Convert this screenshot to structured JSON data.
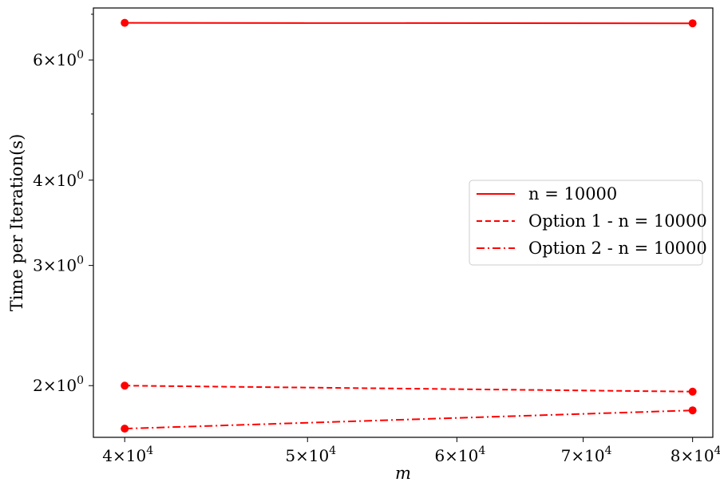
{
  "chart_data": {
    "type": "line",
    "title": "",
    "xlabel": "m",
    "ylabel": "Time per Iteration(s)",
    "x_scale": "log",
    "y_scale": "log",
    "xlim": [
      38500,
      82000
    ],
    "ylim": [
      1.68,
      7.15
    ],
    "x_ticks": [
      {
        "value": 40000,
        "mant": "4",
        "exp": "4"
      },
      {
        "value": 50000,
        "mant": "5",
        "exp": "4"
      },
      {
        "value": 60000,
        "mant": "6",
        "exp": "4"
      },
      {
        "value": 70000,
        "mant": "7",
        "exp": "4"
      },
      {
        "value": 80000,
        "mant": "8",
        "exp": "4"
      }
    ],
    "y_ticks": [
      {
        "value": 2,
        "mant": "2",
        "exp": "0"
      },
      {
        "value": 3,
        "mant": "3",
        "exp": "0"
      },
      {
        "value": 4,
        "mant": "4",
        "exp": "0"
      },
      {
        "value": 6,
        "mant": "6",
        "exp": "0"
      }
    ],
    "y_minor_ticks": [
      5,
      7
    ],
    "legend_position": "center-right",
    "series": [
      {
        "name": "n = 10000",
        "color": "#ff0000",
        "dash": "solid",
        "x": [
          40000,
          80000
        ],
        "y": [
          6.8,
          6.79
        ]
      },
      {
        "name": "Option 1 - n = 10000",
        "color": "#ff0000",
        "dash": "dashed",
        "x": [
          40000,
          80000
        ],
        "y": [
          2.0,
          1.96
        ]
      },
      {
        "name": "Option 2 - n = 10000",
        "color": "#ff0000",
        "dash": "dashdot",
        "x": [
          40000,
          80000
        ],
        "y": [
          1.73,
          1.84
        ]
      }
    ]
  }
}
